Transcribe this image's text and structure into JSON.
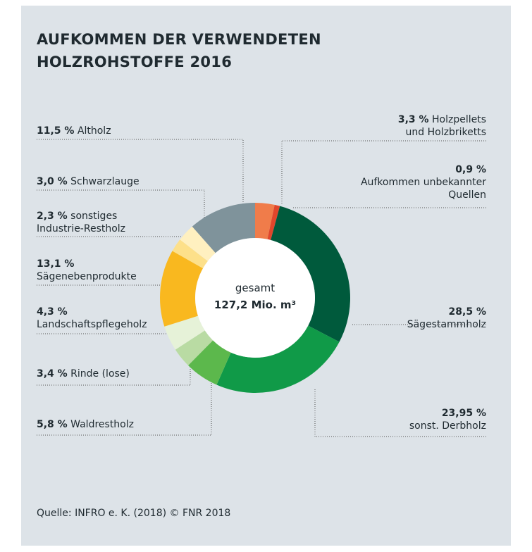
{
  "chart_data": {
    "type": "donut",
    "title": "AUFKOMMEN DER VERWENDETEN\nHOLZROHSTOFFE 2016",
    "center_label": "gesamt",
    "center_value": "127,2 Mio. m³",
    "source": "Quelle: INFRO e. K. (2018) © FNR 2018",
    "categories": [
      "Holzpellets\nund Holzbriketts",
      "Aufkommen unbekannter\nQuellen",
      "Sägestammholz",
      "sonst. Derbholz",
      "Waldrestholz",
      "Rinde (lose)",
      "Landschaftspflegeholz",
      "Sägenebenprodukte",
      "sonstiges\nIndustrie-Restholz",
      "Schwarzlauge",
      "Altholz"
    ],
    "values": [
      3.3,
      0.9,
      28.5,
      23.95,
      5.8,
      3.4,
      4.3,
      13.1,
      2.3,
      3.0,
      11.5
    ],
    "value_labels": [
      "3,3 %",
      "0,9 %",
      "28,5 %",
      "23,95 %",
      "5,8 %",
      "3,4 %",
      "4,3 %",
      "13,1 %",
      "2,3 %",
      "3,0 %",
      "11,5 %"
    ],
    "colors": [
      "#f07c4a",
      "#e0462b",
      "#005a3c",
      "#109a48",
      "#5cb84c",
      "#b9dba3",
      "#e6f2d8",
      "#f9b81f",
      "#fde08a",
      "#fff0c0",
      "#7f939b"
    ]
  }
}
